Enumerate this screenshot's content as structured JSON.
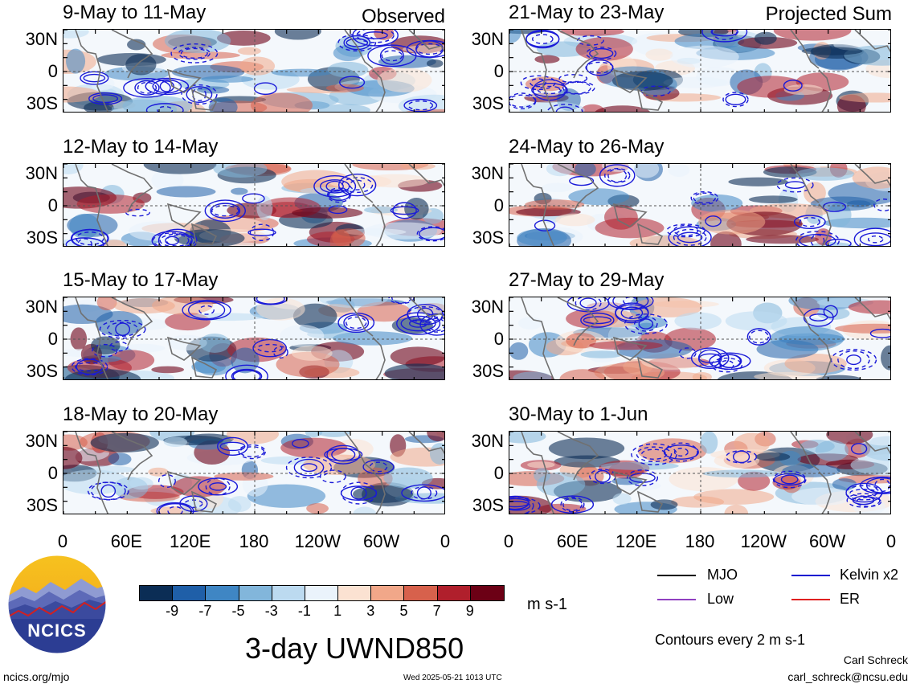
{
  "header": {
    "left_label": "Observed",
    "right_label": "Projected Sum"
  },
  "panels_left": [
    {
      "title": "9-May to 11-May"
    },
    {
      "title": "12-May to 14-May"
    },
    {
      "title": "15-May to 17-May"
    },
    {
      "title": "18-May to 20-May"
    }
  ],
  "panels_right": [
    {
      "title": "21-May to 23-May"
    },
    {
      "title": "24-May to 26-May"
    },
    {
      "title": "27-May to 29-May"
    },
    {
      "title": "30-May to 1-Jun"
    }
  ],
  "axes": {
    "y_ticks": [
      "30N",
      "0",
      "30S"
    ],
    "x_ticks": [
      "0",
      "60E",
      "120E",
      "180",
      "120W",
      "60W",
      "0"
    ]
  },
  "colorbar": {
    "ticks": [
      "-9",
      "-7",
      "-5",
      "-3",
      "-1",
      "1",
      "3",
      "5",
      "7",
      "9"
    ],
    "units": "m s-1",
    "colors": [
      "#0b2d55",
      "#1f5fa8",
      "#3f86c4",
      "#82b6db",
      "#bcdaf0",
      "#eaf3fb",
      "#fbe2d2",
      "#f1a789",
      "#d7614c",
      "#b01f2c",
      "#6c0015"
    ]
  },
  "legend": {
    "mjo": "MJO",
    "kelvin": "Kelvin x2",
    "low": "Low",
    "er": "ER",
    "contours": "Contours every 2 m s-1",
    "colors": {
      "mjo": "#000000",
      "kelvin": "#1010d0",
      "low": "#9040c0",
      "er": "#e02020"
    }
  },
  "footer": {
    "title": "3-day UWND850",
    "site": "ncics.org/mjo",
    "timestamp": "Wed 2025-05-21 1013 UTC",
    "author": "Carl Schreck",
    "email": "carl_schreck@ncsu.edu",
    "logo_text": "NCICS"
  },
  "chart_data": {
    "type": "heatmap",
    "variable": "3-day UWND850",
    "units": "m s-1",
    "x_ticks": [
      "0",
      "60E",
      "120E",
      "180",
      "120W",
      "60W",
      "0"
    ],
    "y_ticks": [
      "30N",
      "0",
      "30S"
    ],
    "color_levels": [
      -9,
      -7,
      -5,
      -3,
      -1,
      1,
      3,
      5,
      7,
      9
    ],
    "contour_interval": 2,
    "contour_series": [
      "MJO",
      "Kelvin x2",
      "Low",
      "ER"
    ],
    "panels": [
      {
        "column": "Observed",
        "period": "9-May to 11-May"
      },
      {
        "column": "Observed",
        "period": "12-May to 14-May"
      },
      {
        "column": "Observed",
        "period": "15-May to 17-May"
      },
      {
        "column": "Observed",
        "period": "18-May to 20-May"
      },
      {
        "column": "Projected Sum",
        "period": "21-May to 23-May"
      },
      {
        "column": "Projected Sum",
        "period": "24-May to 26-May"
      },
      {
        "column": "Projected Sum",
        "period": "27-May to 29-May"
      },
      {
        "column": "Projected Sum",
        "period": "30-May to 1-Jun"
      }
    ]
  }
}
